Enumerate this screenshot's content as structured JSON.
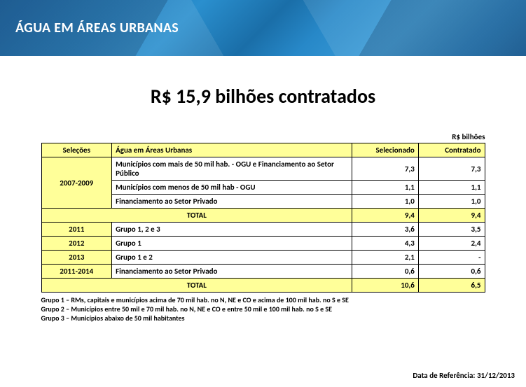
{
  "banner": {
    "title": "ÁGUA EM ÁREAS URBANAS"
  },
  "main_title": "R$ 15,9 bilhões contratados",
  "unit_label": "R$ bilhões",
  "table": {
    "headers": {
      "selecoes": "Seleções",
      "desc": "Água em Áreas Urbanas",
      "selecionado": "Selecionado",
      "contratado": "Contratado"
    },
    "group_a": {
      "period": "2007-2009",
      "rows": [
        {
          "desc": "Municípios com mais de 50 mil hab. - OGU e Financiamento ao Setor Público",
          "sel": "7,3",
          "con": "7,3"
        },
        {
          "desc": "Municípios com menos de 50 mil hab - OGU",
          "sel": "1,1",
          "con": "1,1"
        },
        {
          "desc": "Financiamento ao Setor Privado",
          "sel": "1,0",
          "con": "1,0"
        }
      ],
      "total": {
        "label": "TOTAL",
        "sel": "9,4",
        "con": "9,4"
      }
    },
    "rows_b": [
      {
        "period": "2011",
        "desc": "Grupo 1, 2 e 3",
        "sel": "3,6",
        "con": "3,5"
      },
      {
        "period": "2012",
        "desc": "Grupo 1",
        "sel": "4,3",
        "con": "2,4"
      },
      {
        "period": "2013",
        "desc": "Grupo 1 e 2",
        "sel": "2,1",
        "con": "-"
      },
      {
        "period": "2011-2014",
        "desc": "Financiamento ao Setor Privado",
        "sel": "0,6",
        "con": "0,6"
      }
    ],
    "total_b": {
      "label": "TOTAL",
      "sel": "10,6",
      "con": "6,5"
    }
  },
  "footnotes": [
    "Grupo 1 – RMs, capitais e municípios acima de 70 mil hab. no N, NE e CO e acima de 100 mil hab. no S e SE",
    "Grupo 2 – Municípios entre 50 mil e 70 mil hab. no N, NE e CO e entre 50 mil e 100 mil hab. no S e SE",
    "Grupo 3 – Municípios abaixo de 50 mil habitantes"
  ],
  "ref_date": "Data de Referência: 31/12/2013",
  "colors": {
    "highlight_bg": "#ffff99",
    "border": "#000000",
    "banner_text": "#ffffff"
  }
}
